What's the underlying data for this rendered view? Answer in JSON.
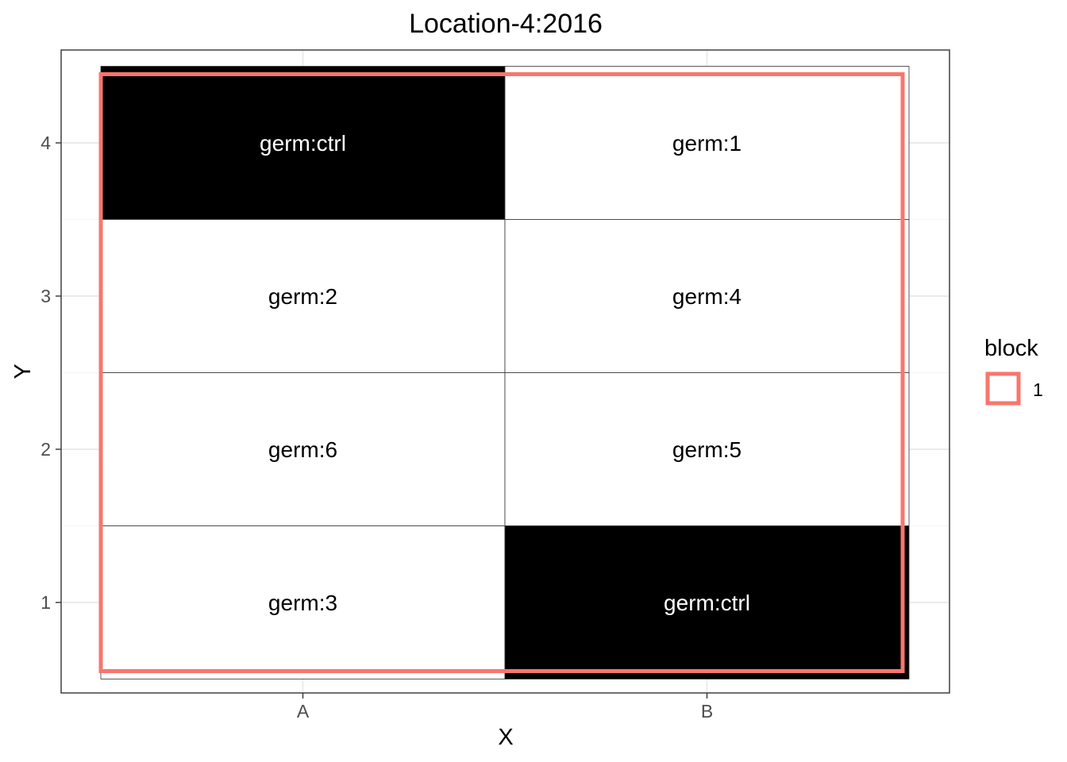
{
  "chart_data": {
    "type": "heatmap",
    "title": "Location-4:2016",
    "xlabel": "X",
    "ylabel": "Y",
    "x_categories": [
      "A",
      "B"
    ],
    "y_ticks": [
      "1",
      "2",
      "3",
      "4"
    ],
    "ylim": [
      0.5,
      4.5
    ],
    "grid": true,
    "cells": [
      {
        "x": "A",
        "y": 4,
        "label": "germ:ctrl",
        "fill": "#000000",
        "text_color": "#ffffff"
      },
      {
        "x": "B",
        "y": 4,
        "label": "germ:1",
        "fill": "#ffffff",
        "text_color": "#000000"
      },
      {
        "x": "A",
        "y": 3,
        "label": "germ:2",
        "fill": "#ffffff",
        "text_color": "#000000"
      },
      {
        "x": "B",
        "y": 3,
        "label": "germ:4",
        "fill": "#ffffff",
        "text_color": "#000000"
      },
      {
        "x": "A",
        "y": 2,
        "label": "germ:6",
        "fill": "#ffffff",
        "text_color": "#000000"
      },
      {
        "x": "B",
        "y": 2,
        "label": "germ:5",
        "fill": "#ffffff",
        "text_color": "#000000"
      },
      {
        "x": "A",
        "y": 1,
        "label": "germ:3",
        "fill": "#ffffff",
        "text_color": "#000000"
      },
      {
        "x": "B",
        "y": 1,
        "label": "germ:ctrl",
        "fill": "#000000",
        "text_color": "#ffffff"
      }
    ],
    "blocks": [
      {
        "name": "1",
        "color": "#f8766d",
        "x_range": [
          "A",
          "B"
        ],
        "y_range": [
          1,
          4
        ]
      }
    ],
    "legend": {
      "title": "block",
      "placement": "right",
      "entries": [
        {
          "label": "1",
          "color": "#f8766d"
        }
      ]
    }
  }
}
